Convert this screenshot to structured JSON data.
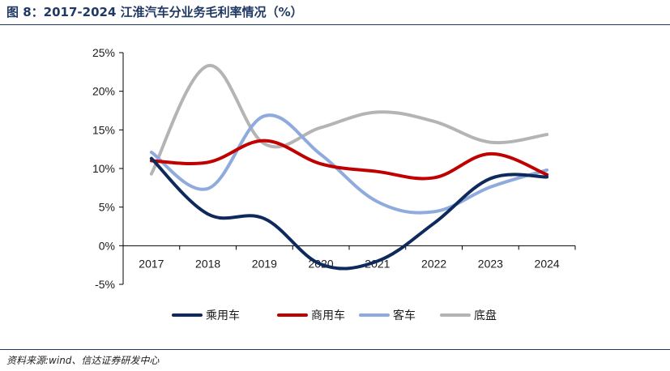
{
  "header": {
    "title": "图 8：2017-2024 江淮汽车分业务毛利率情况（%）"
  },
  "footer": {
    "source": "资料来源:wind、信达证券研发中心"
  },
  "chart_data": {
    "type": "line",
    "title": "",
    "xlabel": "",
    "ylabel": "",
    "categories": [
      "2017",
      "2018",
      "2019",
      "2020",
      "2021",
      "2022",
      "2023",
      "2024"
    ],
    "ylim": [
      -5,
      25
    ],
    "yticks": [
      -5,
      0,
      5,
      10,
      15,
      20,
      25
    ],
    "ytick_labels": [
      "-5%",
      "0%",
      "5%",
      "10%",
      "15%",
      "20%",
      "25%"
    ],
    "grid": false,
    "legend_position": "bottom",
    "series": [
      {
        "name": "乘用车",
        "color": "#0e2a5c",
        "values": [
          11.3,
          4.1,
          3.5,
          -2.4,
          -2.0,
          2.9,
          8.7,
          8.9
        ]
      },
      {
        "name": "商用车",
        "color": "#c00000",
        "values": [
          11.0,
          10.8,
          13.6,
          10.6,
          9.6,
          8.8,
          11.9,
          9.2
        ]
      },
      {
        "name": "客车",
        "color": "#8faadc",
        "values": [
          12.1,
          7.4,
          16.8,
          11.8,
          5.7,
          4.4,
          7.6,
          9.8
        ]
      },
      {
        "name": "底盘",
        "color": "#b4b4b4",
        "values": [
          9.3,
          23.3,
          13.2,
          15.3,
          17.3,
          16.1,
          13.4,
          14.4
        ]
      }
    ]
  }
}
